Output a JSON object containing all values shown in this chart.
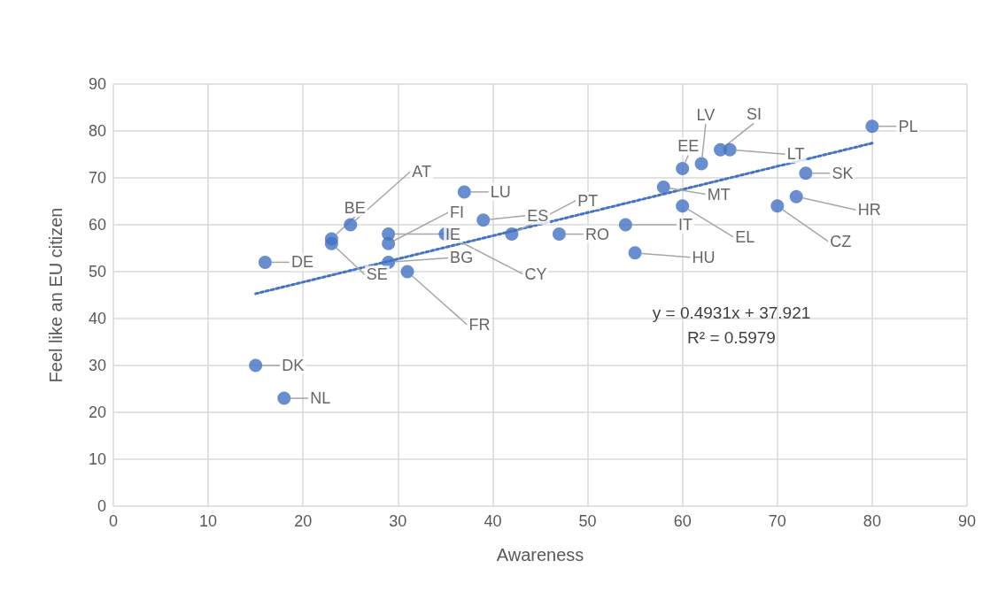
{
  "chart_data": {
    "type": "scatter",
    "xlabel": "Awareness",
    "ylabel": "Feel like an EU citizen",
    "xlim": [
      0,
      90
    ],
    "xticks": [
      0,
      10,
      20,
      30,
      40,
      50,
      60,
      70,
      80,
      90
    ],
    "ylim": [
      0,
      90
    ],
    "yticks": [
      0,
      10,
      20,
      30,
      40,
      50,
      60,
      70,
      80,
      90
    ],
    "grid": true,
    "marker": "circle",
    "series": [
      {
        "color": "#4472c4",
        "x": [
          16,
          15,
          18,
          23,
          23,
          25,
          29,
          29,
          29,
          31,
          35,
          37,
          39,
          42,
          47,
          54,
          55,
          58,
          60,
          60,
          62,
          64,
          65,
          70,
          72,
          73,
          80
        ],
        "values": [
          52,
          30,
          23,
          57,
          56,
          60,
          58,
          56,
          52,
          50,
          58,
          67,
          61,
          58,
          58,
          60,
          54,
          68,
          72,
          64,
          73,
          76,
          76,
          64,
          66,
          71,
          81
        ],
        "value_labels": [
          "DE",
          "DK",
          "NL",
          "BE",
          "SE",
          "AT",
          "IE",
          "FI",
          "BG",
          "FR",
          "CY",
          "LU",
          "ES",
          "PT",
          "RO",
          "IT",
          "HU",
          "MT",
          "EE",
          "EL",
          "LV",
          "SI",
          "LT",
          "CZ",
          "HR",
          "SK",
          "PL"
        ]
      },
      {
        "type": "line",
        "color": "#4472c4",
        "line_style": "dotted",
        "marker": "none",
        "x": [
          15,
          80
        ],
        "values": [
          45.3,
          77.4
        ]
      }
    ],
    "annotations": [
      "y = 0.4931x + 37.921",
      "R² = 0.5979"
    ]
  }
}
